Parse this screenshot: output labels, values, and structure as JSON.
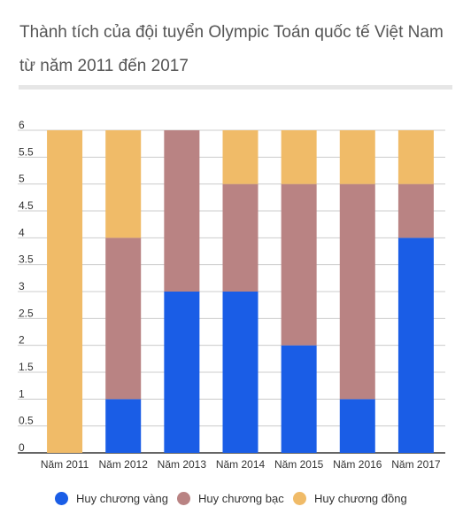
{
  "chart_data": {
    "type": "bar",
    "stacked": true,
    "title_lines": [
      "Thành tích của đội tuyển Olympic Toán quốc tế Việt Nam",
      "từ năm 2011 đến 2017"
    ],
    "categories": [
      "Năm 2011",
      "Năm 2012",
      "Năm 2013",
      "Năm 2014",
      "Năm 2015",
      "Năm 2016",
      "Năm 2017"
    ],
    "series": [
      {
        "name": "Huy chương vàng",
        "color": "#1a5de6",
        "values": [
          0,
          1,
          3,
          3,
          2,
          1,
          4
        ]
      },
      {
        "name": "Huy chương bạc",
        "color": "#b98383",
        "values": [
          0,
          3,
          3,
          2,
          3,
          4,
          1
        ]
      },
      {
        "name": "Huy chương đồng",
        "color": "#f0bb68",
        "values": [
          6,
          2,
          0,
          1,
          1,
          1,
          1
        ]
      }
    ],
    "yticks": [
      "0",
      "0.5",
      "1",
      "1.5",
      "2",
      "2.5",
      "3",
      "3.5",
      "4",
      "4.5",
      "5",
      "5.5",
      "6"
    ],
    "ylim": [
      0,
      6
    ],
    "grid": true,
    "legend_position": "bottom"
  }
}
